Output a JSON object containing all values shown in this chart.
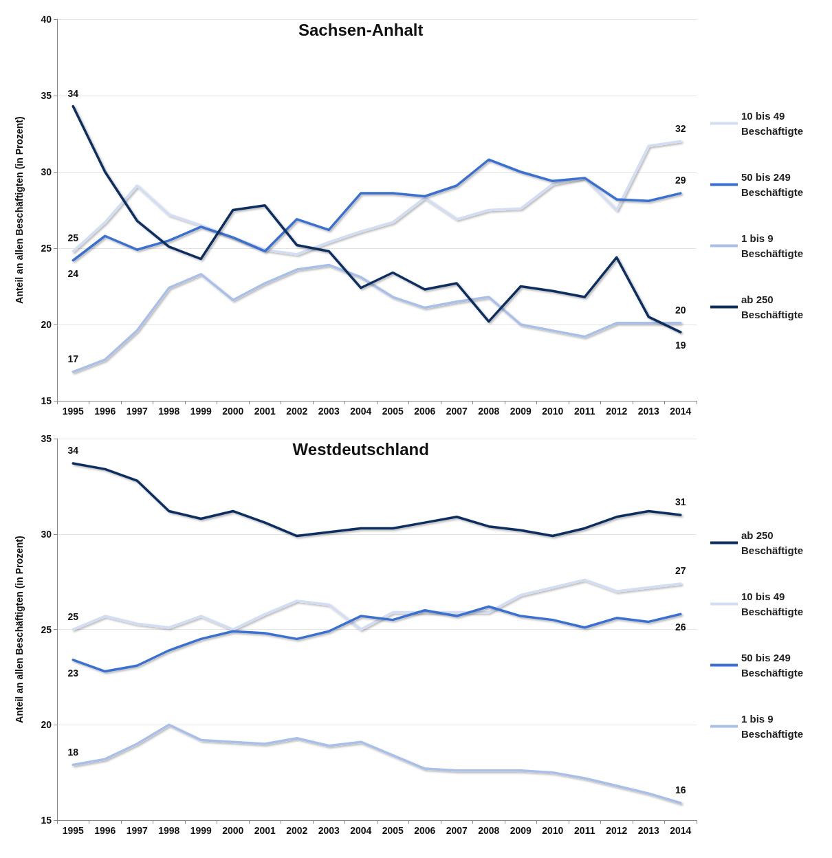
{
  "chart_data": [
    {
      "type": "line",
      "title": "Sachsen-Anhalt",
      "ylabel": "Anteil an allen Beschäftigten (in Prozent)",
      "categories": [
        "1995",
        "1996",
        "1997",
        "1998",
        "1999",
        "2000",
        "2001",
        "2002",
        "2003",
        "2004",
        "2005",
        "2006",
        "2007",
        "2008",
        "2009",
        "2010",
        "2011",
        "2012",
        "2013",
        "2014"
      ],
      "ylim": [
        15,
        40
      ],
      "yticks": [
        15,
        20,
        25,
        30,
        35,
        40
      ],
      "grid": "y",
      "legend": "right",
      "marker": "none",
      "line_style": "solid",
      "series": [
        {
          "name": "10 bis 49 Beschäftigte",
          "color": "#d3ddf3",
          "values": [
            24.8,
            26.7,
            29.1,
            27.2,
            26.5,
            25.7,
            24.9,
            24.6,
            25.4,
            26.1,
            26.7,
            28.3,
            26.9,
            27.5,
            27.6,
            29.2,
            29.6,
            27.5,
            31.7,
            32.0
          ],
          "value_labels": [
            "25",
            null,
            null,
            null,
            null,
            null,
            null,
            null,
            null,
            null,
            null,
            null,
            null,
            null,
            null,
            null,
            null,
            null,
            null,
            "32"
          ]
        },
        {
          "name": "50 bis 249 Beschäftigte",
          "color": "#3a6fcf",
          "values": [
            24.2,
            25.8,
            24.9,
            25.5,
            26.4,
            25.7,
            24.8,
            26.9,
            26.2,
            28.6,
            28.6,
            28.4,
            29.1,
            30.8,
            30.0,
            29.4,
            29.6,
            28.2,
            28.1,
            28.6
          ],
          "value_labels": [
            "24",
            null,
            null,
            null,
            null,
            null,
            null,
            null,
            null,
            null,
            null,
            null,
            null,
            null,
            null,
            null,
            null,
            null,
            null,
            "29"
          ]
        },
        {
          "name": "1 bis 9 Beschäftigte",
          "color": "#a9bfe8",
          "values": [
            16.9,
            17.7,
            19.6,
            22.4,
            23.3,
            21.6,
            22.7,
            23.6,
            23.9,
            23.1,
            21.8,
            21.1,
            21.5,
            21.8,
            20.0,
            19.6,
            19.2,
            20.1,
            20.1,
            20.1
          ],
          "value_labels": [
            "17",
            null,
            null,
            null,
            null,
            null,
            null,
            null,
            null,
            null,
            null,
            null,
            null,
            null,
            null,
            null,
            null,
            null,
            null,
            "20"
          ]
        },
        {
          "name": "ab 250 Beschäftigte",
          "color": "#0d2f5e",
          "values": [
            34.3,
            30.0,
            26.8,
            25.1,
            24.3,
            27.5,
            27.8,
            25.2,
            24.8,
            22.4,
            23.4,
            22.3,
            22.7,
            20.2,
            22.5,
            22.2,
            21.8,
            24.4,
            20.5,
            19.5
          ],
          "value_labels": [
            "34",
            null,
            null,
            null,
            null,
            null,
            null,
            null,
            null,
            null,
            null,
            null,
            null,
            null,
            null,
            null,
            null,
            null,
            null,
            "19"
          ]
        }
      ]
    },
    {
      "type": "line",
      "title": "Westdeutschland",
      "ylabel": "Anteil an allen Beschäftigten (in Prozent)",
      "categories": [
        "1995",
        "1996",
        "1997",
        "1998",
        "1999",
        "2000",
        "2001",
        "2002",
        "2003",
        "2004",
        "2005",
        "2006",
        "2007",
        "2008",
        "2009",
        "2010",
        "2011",
        "2012",
        "2013",
        "2014"
      ],
      "ylim": [
        15,
        35
      ],
      "yticks": [
        15,
        20,
        25,
        30,
        35
      ],
      "grid": "y",
      "legend": "right",
      "marker": "none",
      "line_style": "solid",
      "series": [
        {
          "name": "ab 250 Beschäftigte",
          "color": "#0d2f5e",
          "values": [
            33.7,
            33.4,
            32.8,
            31.2,
            30.8,
            31.2,
            30.6,
            29.9,
            30.1,
            30.3,
            30.3,
            30.6,
            30.9,
            30.4,
            30.2,
            29.9,
            30.3,
            30.9,
            31.2,
            31.0
          ],
          "value_labels": [
            "34",
            null,
            null,
            null,
            null,
            null,
            null,
            null,
            null,
            null,
            null,
            null,
            null,
            null,
            null,
            null,
            null,
            null,
            null,
            "31"
          ]
        },
        {
          "name": "10 bis 49 Beschäftigte",
          "color": "#d3ddf3",
          "values": [
            25.0,
            25.7,
            25.3,
            25.1,
            25.7,
            25.0,
            25.8,
            26.5,
            26.3,
            25.0,
            25.9,
            25.9,
            25.9,
            25.9,
            26.8,
            27.2,
            27.6,
            27.0,
            27.2,
            27.4
          ],
          "value_labels": [
            "25",
            null,
            null,
            null,
            null,
            null,
            null,
            null,
            null,
            null,
            null,
            null,
            null,
            null,
            null,
            null,
            null,
            null,
            null,
            "27"
          ]
        },
        {
          "name": "50 bis 249 Beschäftigte",
          "color": "#3a6fcf",
          "values": [
            23.4,
            22.8,
            23.1,
            23.9,
            24.5,
            24.9,
            24.8,
            24.5,
            24.9,
            25.7,
            25.5,
            26.0,
            25.7,
            26.2,
            25.7,
            25.5,
            25.1,
            25.6,
            25.4,
            25.8
          ],
          "value_labels": [
            "23",
            null,
            null,
            null,
            null,
            null,
            null,
            null,
            null,
            null,
            null,
            null,
            null,
            null,
            null,
            null,
            null,
            null,
            null,
            "26"
          ]
        },
        {
          "name": "1 bis 9 Beschäftigte",
          "color": "#a9bfe8",
          "values": [
            17.9,
            18.2,
            19.0,
            20.0,
            19.2,
            19.1,
            19.0,
            19.3,
            18.9,
            19.1,
            18.4,
            17.7,
            17.6,
            17.6,
            17.6,
            17.5,
            17.2,
            16.8,
            16.4,
            15.9
          ],
          "value_labels": [
            "18",
            null,
            null,
            null,
            null,
            null,
            null,
            null,
            null,
            null,
            null,
            null,
            null,
            null,
            null,
            null,
            null,
            null,
            null,
            "16"
          ]
        }
      ]
    }
  ]
}
